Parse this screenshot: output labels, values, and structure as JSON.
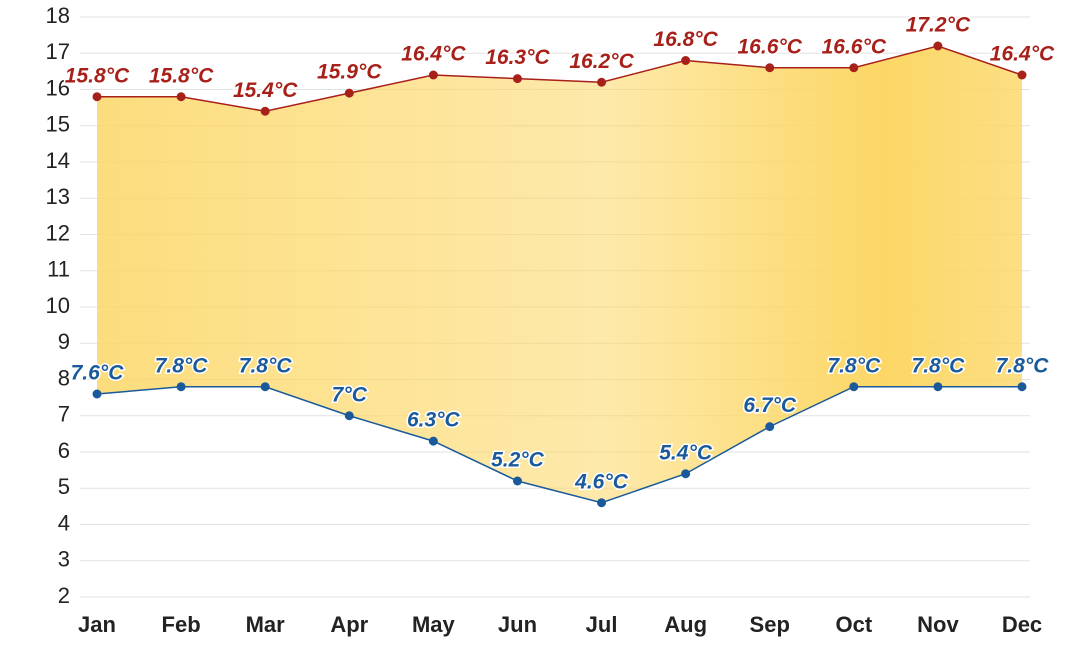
{
  "chart_data": {
    "type": "line",
    "categories": [
      "Jan",
      "Feb",
      "Mar",
      "Apr",
      "May",
      "Jun",
      "Jul",
      "Aug",
      "Sep",
      "Oct",
      "Nov",
      "Dec"
    ],
    "series": [
      {
        "color": "#a8201a",
        "values": [
          15.8,
          15.8,
          15.4,
          15.9,
          16.4,
          16.3,
          16.2,
          16.8,
          16.6,
          16.6,
          17.2,
          16.4
        ],
        "value_labels": [
          "15.8°C",
          "15.8°C",
          "15.4°C",
          "15.9°C",
          "16.4°C",
          "16.3°C",
          "16.2°C",
          "16.8°C",
          "16.6°C",
          "16.6°C",
          "17.2°C",
          "16.4°C"
        ]
      },
      {
        "color": "#1a5a9a",
        "values": [
          7.6,
          7.8,
          7.8,
          7,
          6.3,
          5.2,
          4.6,
          5.4,
          6.7,
          7.8,
          7.8,
          7.8
        ],
        "value_labels": [
          "7.6°C",
          "7.8°C",
          "7.8°C",
          "7°C",
          "6.3°C",
          "5.2°C",
          "4.6°C",
          "5.4°C",
          "6.7°C",
          "7.8°C",
          "7.8°C",
          "7.8°C"
        ]
      }
    ],
    "fill_between": true,
    "fill_color": "#fcd766",
    "ylim": [
      2,
      18
    ],
    "yticks": [
      2,
      3,
      4,
      5,
      6,
      7,
      8,
      9,
      10,
      11,
      12,
      13,
      14,
      15,
      16,
      17,
      18
    ],
    "grid": true
  }
}
